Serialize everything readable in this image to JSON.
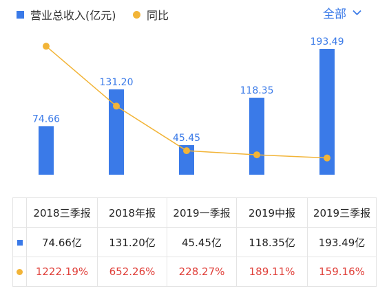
{
  "legend": {
    "revenue_label": "营业总收入(亿元)",
    "yoy_label": "同比"
  },
  "period_select": {
    "label": "全部"
  },
  "colors": {
    "bar": "#3a7ae8",
    "line": "#f2b437",
    "yoy_text": "#e0403a"
  },
  "chart_data": {
    "type": "bar",
    "categories": [
      "2018三季报",
      "2018年报",
      "2019一季报",
      "2019中报",
      "2019三季报"
    ],
    "series": [
      {
        "name": "营业总收入(亿元)",
        "type": "bar",
        "values": [
          74.66,
          131.2,
          45.45,
          118.35,
          193.49
        ],
        "labels": [
          "74.66",
          "131.20",
          "45.45",
          "118.35",
          "193.49"
        ]
      },
      {
        "name": "同比",
        "type": "line",
        "values": [
          1222.19,
          652.26,
          228.27,
          189.11,
          159.16
        ]
      }
    ],
    "ylim": [
      0,
      193.49
    ],
    "y2lim": [
      0,
      1400
    ],
    "grid": false,
    "legend_position": "top-left"
  },
  "table": {
    "headers": [
      "2018三季报",
      "2018年报",
      "2019一季报",
      "2019中报",
      "2019三季报"
    ],
    "revenue": [
      "74.66亿",
      "131.20亿",
      "45.45亿",
      "118.35亿",
      "193.49亿"
    ],
    "yoy": [
      "1222.19%",
      "652.26%",
      "228.27%",
      "189.11%",
      "159.16%"
    ]
  }
}
